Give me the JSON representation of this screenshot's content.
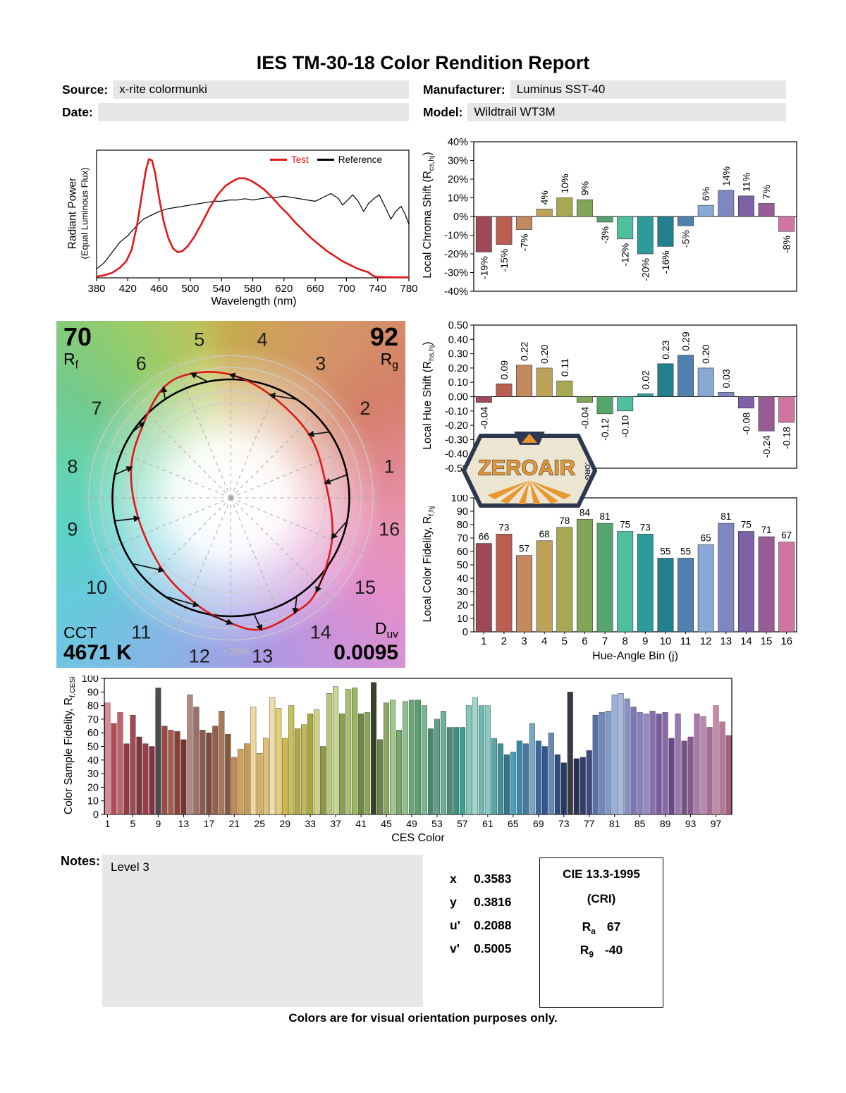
{
  "title": "IES TM-30-18 Color Rendition Report",
  "header": {
    "source_label": "Source:",
    "source_value": "x-rite colormunki",
    "manufacturer_label": "Manufacturer:",
    "manufacturer_value": "Luminus SST-40",
    "date_label": "Date:",
    "date_value": "",
    "model_label": "Model:",
    "model_value": "Wildtrail WT3M"
  },
  "cvg": {
    "rf_value": "70",
    "rf_label": "R",
    "rf_sub": "f",
    "rg_value": "92",
    "rg_label": "R",
    "rg_sub": "g",
    "cct_label": "CCT",
    "cct_value": "4671 K",
    "duv_label": "D",
    "duv_sub": "uv",
    "duv_value": "0.0095",
    "ring_label": "+20%",
    "bin_labels": [
      "1",
      "2",
      "3",
      "4",
      "5",
      "6",
      "7",
      "8",
      "9",
      "10",
      "11",
      "12",
      "13",
      "14",
      "15",
      "16"
    ]
  },
  "palette": {
    "hue_bins": [
      "#9e4858",
      "#b85f52",
      "#c28a5e",
      "#bfa25a",
      "#a9a852",
      "#7ea654",
      "#57a56e",
      "#4fbfa0",
      "#2e9a9a",
      "#22808f",
      "#4f80ae",
      "#88a9d6",
      "#7e87c2",
      "#7e62a6",
      "#985c94",
      "#d075a2"
    ]
  },
  "notes": {
    "label": "Notes:",
    "value": "Level 3"
  },
  "chromaticity": {
    "rows": [
      {
        "label": "x",
        "value": "0.3583"
      },
      {
        "label": "y",
        "value": "0.3816"
      },
      {
        "label": "u'",
        "value": "0.2088"
      },
      {
        "label": "v'",
        "value": "0.5005"
      }
    ]
  },
  "cri_box": {
    "title": "CIE 13.3-1995",
    "subtitle": "(CRI)",
    "ra_label": "R",
    "ra_sub": "a",
    "ra_value": "67",
    "r9_label": "R",
    "r9_sub": "9",
    "r9_value": "-40"
  },
  "footer": "Colors are for visual orientation purposes only.",
  "watermark": {
    "text": "ZEROAIR",
    "suffix": ".ORG"
  },
  "chart_data": [
    {
      "id": "spd",
      "type": "line",
      "xlabel": "Wavelength (nm)",
      "ylabel_line1": "Radiant Power",
      "ylabel_line2": "(Equal Luminous Flux)",
      "xlim": [
        380,
        780
      ],
      "xticks": [
        380,
        420,
        460,
        500,
        540,
        580,
        620,
        660,
        700,
        740,
        780
      ],
      "legend": [
        {
          "name": "Test",
          "color": "#e01818"
        },
        {
          "name": "Reference",
          "color": "#000000"
        }
      ],
      "series": [
        {
          "name": "Test",
          "color": "#e01818",
          "width": 2.6,
          "x": [
            380,
            390,
            400,
            410,
            418,
            425,
            432,
            438,
            443,
            447,
            451,
            455,
            460,
            466,
            472,
            478,
            484,
            490,
            497,
            505,
            515,
            525,
            535,
            545,
            555,
            562,
            570,
            578,
            586,
            595,
            605,
            615,
            625,
            635,
            645,
            655,
            665,
            675,
            685,
            695,
            705,
            715,
            722,
            728,
            733,
            738,
            750,
            765,
            780
          ],
          "y": [
            0.01,
            0.02,
            0.04,
            0.08,
            0.13,
            0.22,
            0.42,
            0.65,
            0.84,
            0.93,
            0.92,
            0.82,
            0.63,
            0.44,
            0.31,
            0.23,
            0.2,
            0.21,
            0.25,
            0.32,
            0.43,
            0.55,
            0.65,
            0.72,
            0.76,
            0.78,
            0.78,
            0.76,
            0.73,
            0.69,
            0.63,
            0.56,
            0.5,
            0.43,
            0.37,
            0.31,
            0.26,
            0.21,
            0.17,
            0.13,
            0.1,
            0.07,
            0.055,
            0.045,
            0.02,
            0.008,
            0.005,
            0.004,
            0.004
          ]
        },
        {
          "name": "Reference",
          "color": "#000000",
          "width": 1.2,
          "x": [
            380,
            390,
            400,
            410,
            420,
            430,
            440,
            450,
            460,
            470,
            480,
            490,
            500,
            510,
            520,
            530,
            540,
            550,
            560,
            570,
            580,
            590,
            600,
            610,
            620,
            630,
            640,
            650,
            660,
            670,
            680,
            690,
            695,
            700,
            708,
            715,
            722,
            728,
            735,
            742,
            750,
            757,
            763,
            770,
            775,
            780
          ],
          "y": [
            0.07,
            0.12,
            0.2,
            0.28,
            0.33,
            0.4,
            0.46,
            0.49,
            0.52,
            0.54,
            0.55,
            0.56,
            0.57,
            0.58,
            0.59,
            0.6,
            0.6,
            0.61,
            0.61,
            0.62,
            0.61,
            0.62,
            0.63,
            0.63,
            0.64,
            0.63,
            0.62,
            0.61,
            0.6,
            0.63,
            0.66,
            0.62,
            0.57,
            0.6,
            0.65,
            0.6,
            0.52,
            0.58,
            0.62,
            0.65,
            0.55,
            0.46,
            0.52,
            0.56,
            0.5,
            0.42
          ]
        }
      ]
    },
    {
      "id": "chroma_shift",
      "type": "bar",
      "ylabel_pre": "Local Chroma Shift (R",
      "ylabel_sub": "cs,hj",
      "ylabel_post": ")",
      "categories": [
        "1",
        "2",
        "3",
        "4",
        "5",
        "6",
        "7",
        "8",
        "9",
        "10",
        "11",
        "12",
        "13",
        "14",
        "15",
        "16"
      ],
      "values": [
        -19,
        -15,
        -7,
        4,
        10,
        9,
        -3,
        -12,
        -20,
        -16,
        -5,
        6,
        14,
        11,
        7,
        -8
      ],
      "bar_labels": [
        "-19%",
        "-15%",
        "-7%",
        "4%",
        "10%",
        "9%",
        "-3%",
        "-12%",
        "-20%",
        "-16%",
        "-5%",
        "6%",
        "14%",
        "11%",
        "7%",
        "-8%"
      ],
      "ylim": [
        -40,
        40
      ],
      "ytick_values": [
        40,
        30,
        20,
        10,
        0,
        -10,
        -20,
        -30,
        -40
      ],
      "ytick_labels": [
        "40%",
        "30%",
        "20%",
        "10%",
        "0%",
        "-10%",
        "-20%",
        "-30%",
        "-40%"
      ]
    },
    {
      "id": "hue_shift",
      "type": "bar",
      "ylabel_pre": "Local Hue Shift (R",
      "ylabel_sub": "hs,hj",
      "ylabel_post": ")",
      "categories": [
        "1",
        "2",
        "3",
        "4",
        "5",
        "6",
        "7",
        "8",
        "9",
        "10",
        "11",
        "12",
        "13",
        "14",
        "15",
        "16"
      ],
      "values": [
        -0.04,
        0.09,
        0.22,
        0.2,
        0.11,
        -0.04,
        -0.12,
        -0.1,
        0.02,
        0.23,
        0.29,
        0.2,
        0.03,
        -0.08,
        -0.24,
        -0.18
      ],
      "bar_labels": [
        "-0.04",
        "0.09",
        "0.22",
        "0.20",
        "0.11",
        "-0.04",
        "-0.12",
        "-0.10",
        "0.02",
        "0.23",
        "0.29",
        "0.20",
        "0.03",
        "-0.08",
        "-0.24",
        "-0.18"
      ],
      "ylim": [
        -0.5,
        0.5
      ],
      "ytick_values": [
        0.5,
        0.4,
        0.3,
        0.2,
        0.1,
        0,
        -0.1,
        -0.2,
        -0.3,
        -0.4,
        -0.5
      ],
      "ytick_labels": [
        "0.50",
        "0.40",
        "0.30",
        "0.20",
        "0.10",
        "0.00",
        "-0.10",
        "-0.20",
        "-0.30",
        "-0.40",
        "-0.50"
      ]
    },
    {
      "id": "local_fidelity",
      "type": "bar",
      "ylabel_pre": "Local Color Fidelity, R",
      "ylabel_sub": "f,hj",
      "ylabel_post": "",
      "xlabel": "Hue-Angle Bin (j)",
      "categories": [
        "1",
        "2",
        "3",
        "4",
        "5",
        "6",
        "7",
        "8",
        "9",
        "10",
        "11",
        "12",
        "13",
        "14",
        "15",
        "16"
      ],
      "values": [
        66,
        73,
        57,
        68,
        78,
        84,
        81,
        75,
        73,
        55,
        55,
        65,
        81,
        75,
        71,
        67
      ],
      "bar_labels": [
        "66",
        "73",
        "57",
        "68",
        "78",
        "84",
        "81",
        "75",
        "73",
        "55",
        "55",
        "65",
        "81",
        "75",
        "71",
        "67"
      ],
      "ylim": [
        0,
        100
      ],
      "ytick_values": [
        100,
        90,
        80,
        70,
        60,
        50,
        40,
        30,
        20,
        10,
        0
      ],
      "ytick_labels": [
        "100",
        "90",
        "80",
        "70",
        "60",
        "50",
        "40",
        "30",
        "20",
        "10",
        "0"
      ]
    },
    {
      "id": "ces",
      "type": "bar",
      "ylabel_pre": "Color Sample Fidelity, R",
      "ylabel_sub": "f,CESi",
      "ylabel_post": "",
      "xlabel": "CES Color",
      "xtick_labels": [
        "1",
        "5",
        "9",
        "13",
        "17",
        "21",
        "25",
        "29",
        "33",
        "37",
        "41",
        "45",
        "49",
        "53",
        "57",
        "61",
        "65",
        "69",
        "73",
        "77",
        "81",
        "85",
        "89",
        "93",
        "97"
      ],
      "values": [
        82,
        67,
        75,
        52,
        73,
        57,
        52,
        50,
        93,
        65,
        62,
        61,
        55,
        88,
        79,
        62,
        60,
        65,
        76,
        59,
        42,
        48,
        52,
        79,
        45,
        56,
        86,
        78,
        56,
        80,
        63,
        66,
        74,
        77,
        50,
        89,
        94,
        74,
        92,
        93,
        74,
        75,
        97,
        55,
        82,
        84,
        62,
        83,
        84,
        84,
        80,
        63,
        70,
        76,
        64,
        64,
        64,
        80,
        86,
        80,
        80,
        56,
        52,
        44,
        46,
        54,
        52,
        67,
        54,
        50,
        60,
        44,
        38,
        90,
        41,
        42,
        47,
        73,
        75,
        76,
        88,
        89,
        85,
        79,
        75,
        74,
        76,
        74,
        75,
        56,
        74,
        54,
        57,
        74,
        72,
        64,
        80,
        68,
        58
      ],
      "colors": [
        "#d98a96",
        "#b84a55",
        "#c2626d",
        "#8f3a45",
        "#a44851",
        "#7e3540",
        "#963f4a",
        "#87333d",
        "#4e4a50",
        "#9a4a44",
        "#a65a50",
        "#8a4038",
        "#75352f",
        "#b08a80",
        "#9c7068",
        "#8a5a50",
        "#7a4a40",
        "#96604a",
        "#aa7a58",
        "#845838",
        "#c08a50",
        "#d4a055",
        "#c89a4a",
        "#f0d8a0",
        "#d8b060",
        "#e0c070",
        "#f0e0a8",
        "#e8d070",
        "#d0b848",
        "#c8c058",
        "#b0a840",
        "#c0b850",
        "#a8a838",
        "#d0d080",
        "#909848",
        "#b8c878",
        "#c8d890",
        "#88a050",
        "#a8c070",
        "#98b858",
        "#708840",
        "#88a858",
        "#3a4028",
        "#6a8848",
        "#8aa860",
        "#a0c888",
        "#78a868",
        "#90c090",
        "#68a878",
        "#58a070",
        "#78b890",
        "#48886a",
        "#60a088",
        "#70b09a",
        "#508878",
        "#409080",
        "#38a090",
        "#80c8b8",
        "#a0d8cc",
        "#70b8b0",
        "#88ccc8",
        "#58a8a8",
        "#409098",
        "#307888",
        "#48a0b8",
        "#3888a8",
        "#4878a0",
        "#78a8c8",
        "#3868a0",
        "#305890",
        "#6888b8",
        "#2c4a7c",
        "#243a64",
        "#3a3a46",
        "#2a3058",
        "#343c6a",
        "#3e4a82",
        "#5870a8",
        "#7088c0",
        "#8098cc",
        "#98b0dc",
        "#a8b8e0",
        "#8890c8",
        "#7878b8",
        "#8880c0",
        "#9888c8",
        "#8870b0",
        "#7858a0",
        "#8868a8",
        "#6a4888",
        "#9878b0",
        "#7a5088",
        "#8a5890",
        "#aa78a8",
        "#b888b0",
        "#a86898",
        "#c888a8",
        "#b87898",
        "#a86080"
      ],
      "ylim": [
        0,
        100
      ],
      "ytick_values": [
        100,
        90,
        80,
        70,
        60,
        50,
        40,
        30,
        20,
        10,
        0
      ],
      "ytick_labels": [
        "100",
        "90",
        "80",
        "70",
        "60",
        "50",
        "40",
        "30",
        "20",
        "10",
        "0"
      ]
    }
  ]
}
